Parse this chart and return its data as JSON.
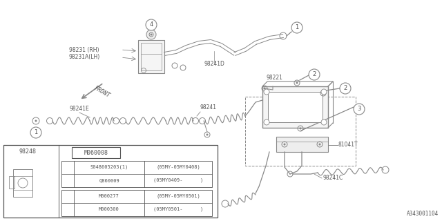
{
  "diagram_id": "A343001104",
  "bg_color": "#ffffff",
  "line_color": "#888888",
  "dark_color": "#555555",
  "table_bg": "#ffffff",
  "label_98231_rh": "98231 (RH)",
  "label_98231_lh": "98231A(LH)",
  "label_98241d": "98241D",
  "label_98221": "98221",
  "label_98241": "98241",
  "label_98241e": "98241E",
  "label_81041t": "81041T",
  "label_98241c": "98241C",
  "label_front": "FRONT",
  "table_item1": "98248",
  "table_item2": "M060008",
  "table_row3a_code": "S048605203(1)",
  "table_row3a_range": "(05MY-05MY0408)",
  "table_row3b_code": "Q860009",
  "table_row3b_range": "(05MY0409-      )",
  "table_row4a_code": "M000277",
  "table_row4a_range": "(05MY-05MY0501)",
  "table_row4b_code": "M000300",
  "table_row4b_range": "(05MY0501-      )"
}
